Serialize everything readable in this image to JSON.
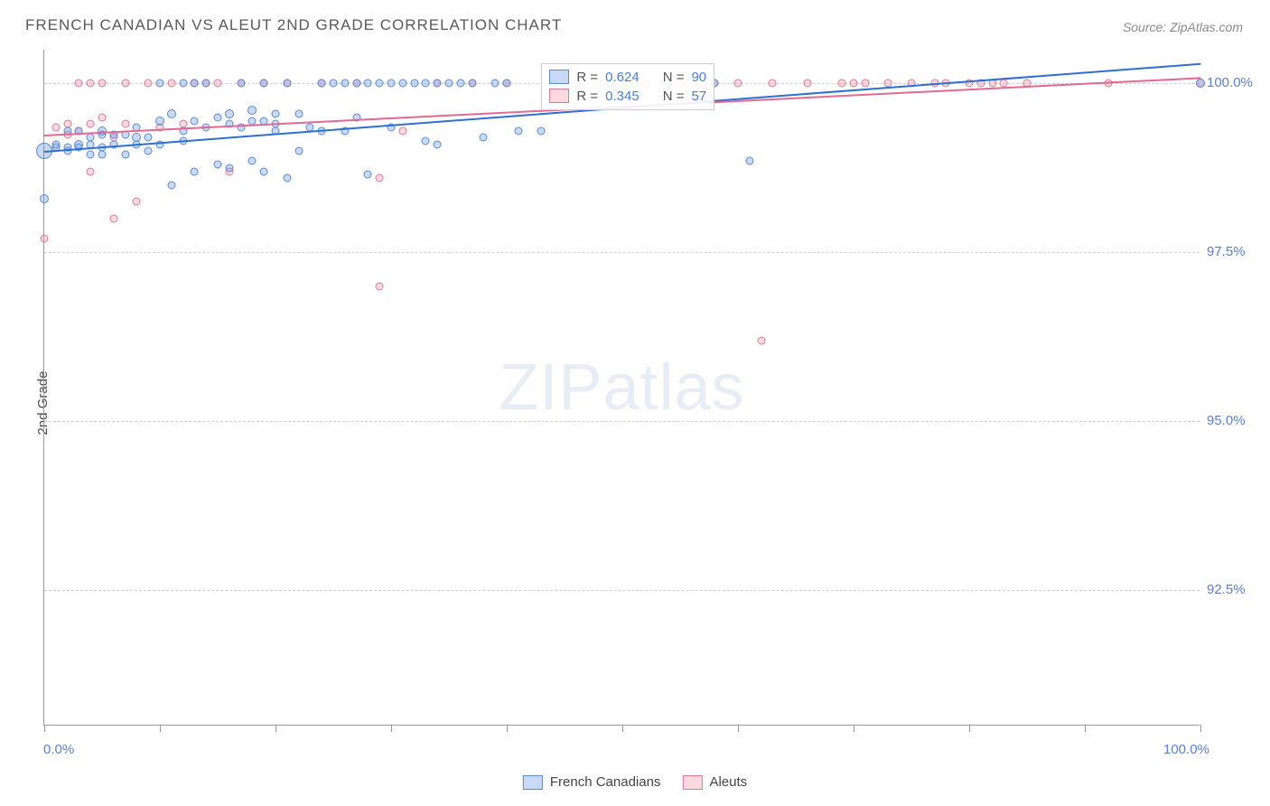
{
  "title": "FRENCH CANADIAN VS ALEUT 2ND GRADE CORRELATION CHART",
  "source": "Source: ZipAtlas.com",
  "ylabel": "2nd Grade",
  "watermark_zip": "ZIP",
  "watermark_atlas": "atlas",
  "chart": {
    "type": "scatter",
    "xlim": [
      0,
      100
    ],
    "ylim": [
      90.5,
      100.5
    ],
    "x_ticks_major": [
      0,
      10,
      20,
      30,
      40,
      50,
      60,
      70,
      80,
      90,
      100
    ],
    "x_tick_labels": {
      "0": "0.0%",
      "100": "100.0%"
    },
    "y_ticks": [
      92.5,
      95.0,
      97.5,
      100.0
    ],
    "y_tick_labels": [
      "92.5%",
      "95.0%",
      "97.5%",
      "100.0%"
    ],
    "background_color": "#ffffff",
    "grid_color": "#d0d0d0",
    "axis_color": "#999999",
    "tick_label_color": "#5b7fd6",
    "text_color": "#5a5a5a"
  },
  "series": {
    "french_canadians": {
      "label": "French Canadians",
      "color_fill": "rgba(100,150,230,0.35)",
      "color_stroke": "#5b8ad0",
      "trend": {
        "x1": 0,
        "y1": 99.0,
        "x2": 100,
        "y2": 100.3,
        "color": "#2e6fd4",
        "width": 2
      },
      "R": "0.624",
      "N": "90",
      "points": [
        [
          0,
          99.0,
          18
        ],
        [
          0,
          98.3,
          10
        ],
        [
          1,
          99.05,
          9
        ],
        [
          1,
          99.1,
          9
        ],
        [
          2,
          99.05,
          9
        ],
        [
          2,
          99.3,
          9
        ],
        [
          2,
          99.0,
          9
        ],
        [
          3,
          99.1,
          10
        ],
        [
          3,
          99.3,
          9
        ],
        [
          3,
          99.05,
          9
        ],
        [
          4,
          99.1,
          9
        ],
        [
          4,
          98.95,
          9
        ],
        [
          4,
          99.2,
          9
        ],
        [
          5,
          99.3,
          10
        ],
        [
          5,
          99.25,
          9
        ],
        [
          5,
          98.95,
          9
        ],
        [
          5,
          99.05,
          9
        ],
        [
          6,
          99.1,
          9
        ],
        [
          6,
          99.25,
          9
        ],
        [
          7,
          99.25,
          9
        ],
        [
          7,
          98.95,
          9
        ],
        [
          8,
          99.2,
          10
        ],
        [
          8,
          99.1,
          9
        ],
        [
          8,
          99.35,
          9
        ],
        [
          9,
          99.2,
          9
        ],
        [
          9,
          99.0,
          9
        ],
        [
          10,
          99.45,
          10
        ],
        [
          10,
          99.1,
          9
        ],
        [
          10,
          100.0,
          9
        ],
        [
          11,
          99.55,
          10
        ],
        [
          11,
          98.5,
          9
        ],
        [
          12,
          99.15,
          9
        ],
        [
          12,
          99.3,
          9
        ],
        [
          12,
          100.0,
          9
        ],
        [
          13,
          99.45,
          9
        ],
        [
          13,
          98.7,
          9
        ],
        [
          13,
          100.0,
          9
        ],
        [
          14,
          99.35,
          9
        ],
        [
          14,
          100.0,
          9
        ],
        [
          15,
          99.5,
          9
        ],
        [
          15,
          98.8,
          9
        ],
        [
          16,
          99.4,
          9
        ],
        [
          16,
          99.55,
          10
        ],
        [
          16,
          98.75,
          9
        ],
        [
          17,
          99.35,
          9
        ],
        [
          17,
          100.0,
          9
        ],
        [
          18,
          99.45,
          9
        ],
        [
          18,
          98.85,
          9
        ],
        [
          18,
          99.6,
          10
        ],
        [
          19,
          99.45,
          9
        ],
        [
          19,
          98.7,
          9
        ],
        [
          19,
          100.0,
          9
        ],
        [
          20,
          99.3,
          9
        ],
        [
          20,
          99.55,
          9
        ],
        [
          20,
          99.4,
          9
        ],
        [
          21,
          98.6,
          9
        ],
        [
          21,
          100.0,
          9
        ],
        [
          22,
          99.0,
          9
        ],
        [
          22,
          99.55,
          9
        ],
        [
          23,
          99.35,
          9
        ],
        [
          24,
          99.3,
          9
        ],
        [
          24,
          100.0,
          9
        ],
        [
          25,
          100.0,
          9
        ],
        [
          26,
          100.0,
          9
        ],
        [
          26,
          99.3,
          9
        ],
        [
          27,
          100.0,
          9
        ],
        [
          27,
          99.5,
          9
        ],
        [
          28,
          100.0,
          9
        ],
        [
          28,
          98.65,
          9
        ],
        [
          29,
          100.0,
          9
        ],
        [
          30,
          100.0,
          9
        ],
        [
          30,
          99.35,
          9
        ],
        [
          31,
          100.0,
          9
        ],
        [
          32,
          100.0,
          9
        ],
        [
          33,
          100.0,
          9
        ],
        [
          33,
          99.15,
          9
        ],
        [
          34,
          100.0,
          9
        ],
        [
          34,
          99.1,
          9
        ],
        [
          35,
          100.0,
          9
        ],
        [
          36,
          100.0,
          9
        ],
        [
          37,
          100.0,
          9
        ],
        [
          38,
          99.2,
          9
        ],
        [
          39,
          100.0,
          9
        ],
        [
          40,
          100.0,
          9
        ],
        [
          41,
          99.3,
          9
        ],
        [
          43,
          99.3,
          9
        ],
        [
          46,
          100.0,
          9
        ],
        [
          49,
          100.0,
          9
        ],
        [
          51,
          100.0,
          9
        ],
        [
          54,
          100.0,
          9
        ],
        [
          58,
          100.0,
          9
        ],
        [
          61,
          98.85,
          9
        ],
        [
          100,
          100.0,
          10
        ]
      ]
    },
    "aleuts": {
      "label": "Aleuts",
      "color_fill": "rgba(240,140,160,0.33)",
      "color_stroke": "#da7a95",
      "trend": {
        "x1": 0,
        "y1": 99.25,
        "x2": 100,
        "y2": 100.1,
        "color": "#e36990",
        "width": 2
      },
      "R": "0.345",
      "N": "57",
      "points": [
        [
          0,
          97.7,
          9
        ],
        [
          1,
          99.35,
          9
        ],
        [
          2,
          99.25,
          9
        ],
        [
          2,
          99.4,
          9
        ],
        [
          3,
          100.0,
          9
        ],
        [
          3,
          99.3,
          9
        ],
        [
          4,
          99.4,
          9
        ],
        [
          4,
          100.0,
          9
        ],
        [
          4,
          98.7,
          9
        ],
        [
          5,
          99.5,
          9
        ],
        [
          5,
          100.0,
          9
        ],
        [
          6,
          98.0,
          9
        ],
        [
          6,
          99.2,
          9
        ],
        [
          7,
          99.4,
          9
        ],
        [
          7,
          100.0,
          9
        ],
        [
          8,
          98.25,
          9
        ],
        [
          9,
          100.0,
          9
        ],
        [
          10,
          99.35,
          9
        ],
        [
          11,
          100.0,
          9
        ],
        [
          12,
          99.4,
          9
        ],
        [
          13,
          100.0,
          9
        ],
        [
          14,
          100.0,
          9
        ],
        [
          15,
          100.0,
          9
        ],
        [
          16,
          98.7,
          9
        ],
        [
          17,
          100.0,
          9
        ],
        [
          19,
          100.0,
          9
        ],
        [
          21,
          100.0,
          9
        ],
        [
          24,
          100.0,
          9
        ],
        [
          27,
          100.0,
          9
        ],
        [
          29,
          98.6,
          9
        ],
        [
          29,
          97.0,
          9
        ],
        [
          31,
          99.3,
          9
        ],
        [
          34,
          100.0,
          9
        ],
        [
          37,
          100.0,
          9
        ],
        [
          40,
          100.0,
          9
        ],
        [
          44,
          100.0,
          9
        ],
        [
          48,
          100.0,
          9
        ],
        [
          52,
          100.0,
          9
        ],
        [
          55,
          100.0,
          9
        ],
        [
          58,
          100.0,
          9
        ],
        [
          60,
          100.0,
          9
        ],
        [
          62,
          96.2,
          9
        ],
        [
          63,
          100.0,
          9
        ],
        [
          66,
          100.0,
          9
        ],
        [
          69,
          100.0,
          9
        ],
        [
          70,
          100.0,
          9
        ],
        [
          71,
          100.0,
          9
        ],
        [
          73,
          100.0,
          9
        ],
        [
          75,
          100.0,
          9
        ],
        [
          77,
          100.0,
          9
        ],
        [
          78,
          100.0,
          9
        ],
        [
          80,
          100.0,
          9
        ],
        [
          81,
          100.0,
          9
        ],
        [
          82,
          100.0,
          9
        ],
        [
          83,
          100.0,
          9
        ],
        [
          85,
          100.0,
          9
        ],
        [
          92,
          100.0,
          9
        ],
        [
          100,
          100.0,
          10
        ]
      ]
    }
  },
  "stats_legend": {
    "r_label": "R =",
    "n_label": "N ="
  },
  "bottom_legend": {
    "fc": "French Canadians",
    "al": "Aleuts"
  }
}
